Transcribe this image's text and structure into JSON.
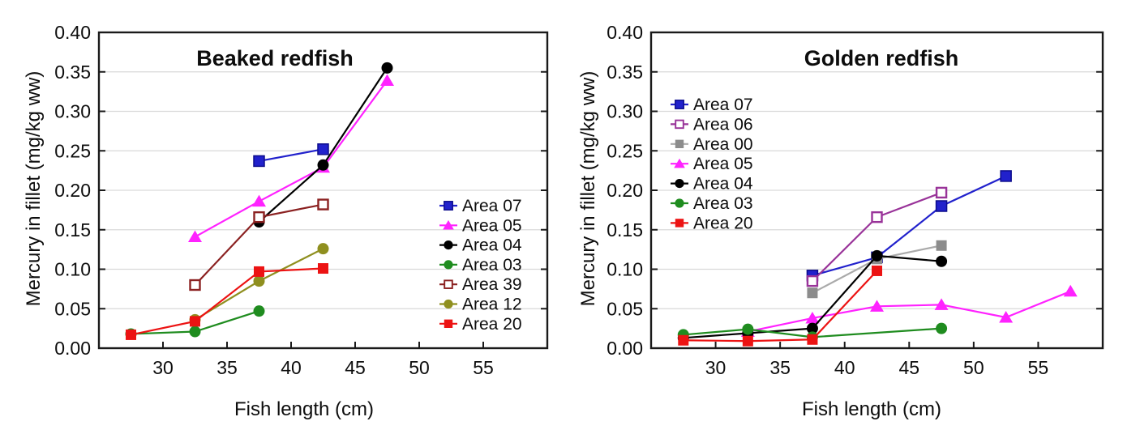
{
  "page": {
    "background": "#ffffff",
    "description_left_panel": "Beaked redfish mercury vs length line chart",
    "description_right_panel": "Golden redfish mercury vs length line chart"
  },
  "chart_data": [
    {
      "type": "line",
      "title": "Beaked redfish",
      "xlabel": "Fish length (cm)",
      "ylabel": "Mercury in fillet (mg/kg ww)",
      "xlim": [
        25,
        60
      ],
      "ylim": [
        0,
        0.4
      ],
      "xticks": [
        30,
        35,
        40,
        45,
        50,
        55
      ],
      "yticks": [
        0.0,
        0.05,
        0.1,
        0.15,
        0.2,
        0.25,
        0.3,
        0.35,
        0.4
      ],
      "grid": "horizontal",
      "legend_position": "inside-middle-right",
      "series": [
        {
          "name": "Area 07",
          "marker": "square",
          "color": "#2121cc",
          "edge": "#0d0d8c",
          "points": [
            [
              37.5,
              0.237
            ],
            [
              42.5,
              0.252
            ]
          ]
        },
        {
          "name": "Area 05",
          "marker": "triangle",
          "color": "#ff22ff",
          "points": [
            [
              32.5,
              0.141
            ],
            [
              37.5,
              0.186
            ],
            [
              42.5,
              0.229
            ],
            [
              47.5,
              0.339
            ]
          ]
        },
        {
          "name": "Area 04",
          "marker": "circle",
          "color": "#000000",
          "points": [
            [
              37.5,
              0.16
            ],
            [
              42.5,
              0.232
            ],
            [
              47.5,
              0.355
            ]
          ]
        },
        {
          "name": "Area 03",
          "marker": "circle",
          "color": "#1f8c1f",
          "points": [
            [
              27.5,
              0.018
            ],
            [
              32.5,
              0.021
            ],
            [
              37.5,
              0.047
            ]
          ]
        },
        {
          "name": "Area 39",
          "marker": "open-square",
          "color": "#8b2121",
          "points": [
            [
              32.5,
              0.08
            ],
            [
              37.5,
              0.166
            ],
            [
              42.5,
              0.182
            ]
          ]
        },
        {
          "name": "Area 12",
          "marker": "circle",
          "color": "#8f8f1f",
          "points": [
            [
              32.5,
              0.036
            ],
            [
              37.5,
              0.085
            ],
            [
              42.5,
              0.126
            ]
          ]
        },
        {
          "name": "Area 20",
          "marker": "square",
          "color": "#ec1313",
          "points": [
            [
              27.5,
              0.017
            ],
            [
              32.5,
              0.034
            ],
            [
              37.5,
              0.097
            ],
            [
              42.5,
              0.101
            ]
          ]
        }
      ]
    },
    {
      "type": "line",
      "title": "Golden redfish",
      "xlabel": "Fish length (cm)",
      "ylabel": "Mercury in fillet (mg/kg ww)",
      "xlim": [
        25,
        60
      ],
      "ylim": [
        0,
        0.4
      ],
      "xticks": [
        30,
        35,
        40,
        45,
        50,
        55
      ],
      "yticks": [
        0.0,
        0.05,
        0.1,
        0.15,
        0.2,
        0.25,
        0.3,
        0.35,
        0.4
      ],
      "grid": "horizontal",
      "legend_position": "inside-upper-left",
      "series": [
        {
          "name": "Area 07",
          "marker": "square",
          "color": "#2121cc",
          "edge": "#0d0d8c",
          "points": [
            [
              37.5,
              0.092
            ],
            [
              42.5,
              0.115
            ],
            [
              47.5,
              0.18
            ],
            [
              52.5,
              0.218
            ]
          ]
        },
        {
          "name": "Area 06",
          "marker": "open-square",
          "color": "#993399",
          "points": [
            [
              37.5,
              0.085
            ],
            [
              42.5,
              0.166
            ],
            [
              47.5,
              0.197
            ]
          ]
        },
        {
          "name": "Area 00",
          "marker": "square",
          "color": "#8c8c8c",
          "line_color": "#aaaaaa",
          "points": [
            [
              37.5,
              0.07
            ],
            [
              42.5,
              0.113
            ],
            [
              47.5,
              0.13
            ]
          ]
        },
        {
          "name": "Area 05",
          "marker": "triangle",
          "color": "#ff22ff",
          "points": [
            [
              32.5,
              0.021
            ],
            [
              37.5,
              0.038
            ],
            [
              42.5,
              0.053
            ],
            [
              47.5,
              0.055
            ],
            [
              52.5,
              0.039
            ],
            [
              57.5,
              0.072
            ]
          ]
        },
        {
          "name": "Area 04",
          "marker": "circle",
          "color": "#000000",
          "points": [
            [
              27.5,
              0.013
            ],
            [
              32.5,
              0.019
            ],
            [
              37.5,
              0.025
            ],
            [
              42.5,
              0.117
            ],
            [
              47.5,
              0.11
            ]
          ]
        },
        {
          "name": "Area 03",
          "marker": "circle",
          "color": "#1f8c1f",
          "points": [
            [
              27.5,
              0.017
            ],
            [
              32.5,
              0.024
            ],
            [
              37.5,
              0.014
            ],
            [
              47.5,
              0.025
            ]
          ]
        },
        {
          "name": "Area 20",
          "marker": "square",
          "color": "#ec1313",
          "points": [
            [
              27.5,
              0.01
            ],
            [
              32.5,
              0.009
            ],
            [
              37.5,
              0.011
            ],
            [
              42.5,
              0.098
            ]
          ]
        }
      ]
    }
  ]
}
